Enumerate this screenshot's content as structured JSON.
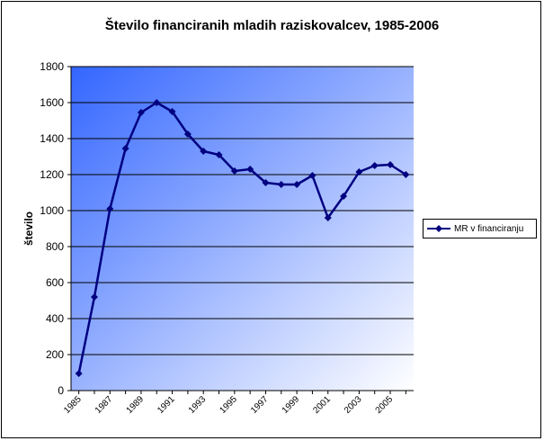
{
  "chart_data": {
    "type": "line",
    "title": "Število financiranih mladih raziskovalcev, 1985-2006",
    "xlabel": "",
    "ylabel": "število",
    "ylim": [
      0,
      1800
    ],
    "yticks": [
      0,
      200,
      400,
      600,
      800,
      1000,
      1200,
      1400,
      1600,
      1800
    ],
    "xticks": [
      "1985",
      "1987",
      "1989",
      "1991",
      "1993",
      "1995",
      "1997",
      "1999",
      "2001",
      "2003",
      "2005"
    ],
    "x": [
      1985,
      1986,
      1987,
      1988,
      1989,
      1990,
      1991,
      1992,
      1993,
      1994,
      1995,
      1996,
      1997,
      1998,
      1999,
      2000,
      2001,
      2002,
      2003,
      2004,
      2005,
      2006
    ],
    "series": [
      {
        "name": "MR v financiranju",
        "color": "#000080",
        "values": [
          95,
          520,
          1010,
          1345,
          1545,
          1600,
          1550,
          1425,
          1330,
          1310,
          1220,
          1230,
          1155,
          1145,
          1145,
          1195,
          960,
          1080,
          1215,
          1250,
          1255,
          1200
        ]
      }
    ],
    "grid": true,
    "legend": "right",
    "plot_gradient": [
      "#3366ff",
      "#ffffff"
    ]
  }
}
